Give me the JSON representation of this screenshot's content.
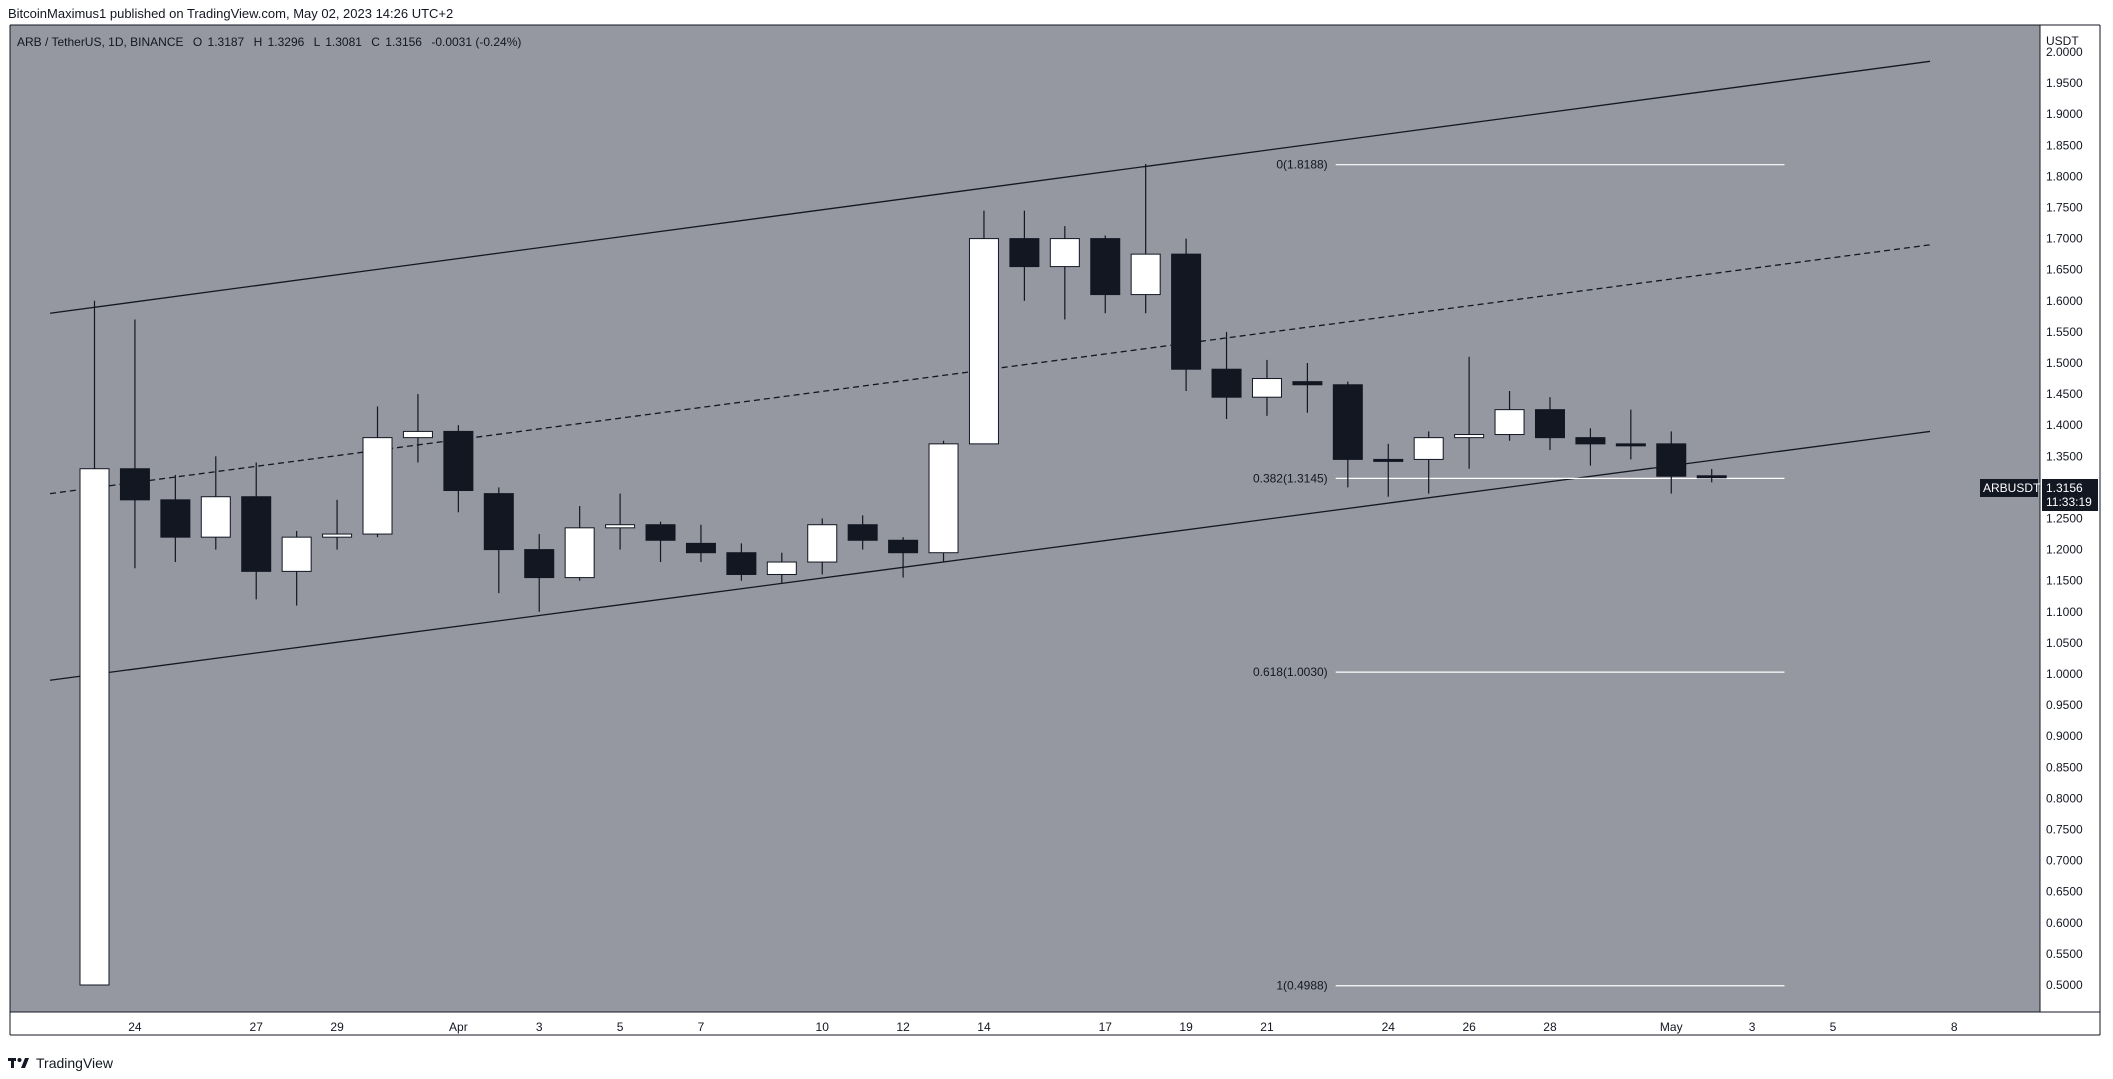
{
  "header": {
    "published_line": "BitcoinMaximus1 published on TradingView.com, May 02, 2023 14:26 UTC+2"
  },
  "legend": {
    "symbol_line": "ARB / TetherUS, 1D, BINANCE",
    "o_label": "O",
    "o_value": "1.3187",
    "h_label": "H",
    "h_value": "1.3296",
    "l_label": "L",
    "l_value": "1.3081",
    "c_label": "C",
    "c_value": "1.3156",
    "change": "-0.0031 (-0.24%)"
  },
  "price_tag": {
    "symbol": "ARBUSDT",
    "price": "1.3156",
    "countdown": "11:33:19"
  },
  "footer": {
    "brand": "TradingView"
  },
  "colors": {
    "plot_bg": "#9598a1",
    "up_candle": "#ffffff",
    "down_candle": "#131722",
    "channel": "#131722",
    "fib": "#ffffff",
    "axis_bg": "#ffffff"
  },
  "chart_data": {
    "type": "candlestick",
    "y_axis": {
      "unit": "USDT",
      "range": [
        0.47,
        2.05
      ],
      "ticks": [
        "2.0000",
        "1.9500",
        "1.9000",
        "1.8500",
        "1.8000",
        "1.7500",
        "1.7000",
        "1.6500",
        "1.6000",
        "1.5500",
        "1.5000",
        "1.4500",
        "1.4000",
        "1.3500",
        "1.3000",
        "1.2500",
        "1.2000",
        "1.1500",
        "1.1000",
        "1.0500",
        "1.0000",
        "0.9500",
        "0.9000",
        "0.8500",
        "0.8000",
        "0.7500",
        "0.7000",
        "0.6500",
        "0.6000",
        "0.5500",
        "0.5000"
      ]
    },
    "x_axis": {
      "ticks": [
        {
          "label": "24",
          "day": 1
        },
        {
          "label": "27",
          "day": 4
        },
        {
          "label": "29",
          "day": 6
        },
        {
          "label": "Apr",
          "day": 9
        },
        {
          "label": "3",
          "day": 11
        },
        {
          "label": "5",
          "day": 13
        },
        {
          "label": "7",
          "day": 15
        },
        {
          "label": "10",
          "day": 18
        },
        {
          "label": "12",
          "day": 20
        },
        {
          "label": "14",
          "day": 22
        },
        {
          "label": "17",
          "day": 25
        },
        {
          "label": "19",
          "day": 27
        },
        {
          "label": "21",
          "day": 29
        },
        {
          "label": "24",
          "day": 32
        },
        {
          "label": "26",
          "day": 34
        },
        {
          "label": "28",
          "day": 36
        },
        {
          "label": "May",
          "day": 39
        },
        {
          "label": "3",
          "day": 41
        },
        {
          "label": "5",
          "day": 43
        },
        {
          "label": "8",
          "day": 46
        }
      ]
    },
    "candles": [
      {
        "date": "2023-03-23",
        "o": 0.5,
        "h": 1.6,
        "l": 0.5,
        "c": 1.33
      },
      {
        "date": "2023-03-24",
        "o": 1.33,
        "h": 1.57,
        "l": 1.17,
        "c": 1.28
      },
      {
        "date": "2023-03-25",
        "o": 1.28,
        "h": 1.32,
        "l": 1.18,
        "c": 1.22
      },
      {
        "date": "2023-03-26",
        "o": 1.22,
        "h": 1.35,
        "l": 1.2,
        "c": 1.285
      },
      {
        "date": "2023-03-27",
        "o": 1.285,
        "h": 1.34,
        "l": 1.12,
        "c": 1.165
      },
      {
        "date": "2023-03-28",
        "o": 1.165,
        "h": 1.23,
        "l": 1.11,
        "c": 1.22
      },
      {
        "date": "2023-03-29",
        "o": 1.22,
        "h": 1.28,
        "l": 1.2,
        "c": 1.225
      },
      {
        "date": "2023-03-30",
        "o": 1.225,
        "h": 1.43,
        "l": 1.22,
        "c": 1.38
      },
      {
        "date": "2023-03-31",
        "o": 1.38,
        "h": 1.45,
        "l": 1.34,
        "c": 1.39
      },
      {
        "date": "2023-04-01",
        "o": 1.39,
        "h": 1.4,
        "l": 1.26,
        "c": 1.295
      },
      {
        "date": "2023-04-02",
        "o": 1.29,
        "h": 1.3,
        "l": 1.13,
        "c": 1.2
      },
      {
        "date": "2023-04-03",
        "o": 1.2,
        "h": 1.225,
        "l": 1.1,
        "c": 1.155
      },
      {
        "date": "2023-04-04",
        "o": 1.155,
        "h": 1.27,
        "l": 1.15,
        "c": 1.235
      },
      {
        "date": "2023-04-05",
        "o": 1.235,
        "h": 1.29,
        "l": 1.2,
        "c": 1.24
      },
      {
        "date": "2023-04-06",
        "o": 1.24,
        "h": 1.245,
        "l": 1.18,
        "c": 1.215
      },
      {
        "date": "2023-04-07",
        "o": 1.21,
        "h": 1.24,
        "l": 1.18,
        "c": 1.195
      },
      {
        "date": "2023-04-08",
        "o": 1.195,
        "h": 1.21,
        "l": 1.15,
        "c": 1.16
      },
      {
        "date": "2023-04-09",
        "o": 1.16,
        "h": 1.195,
        "l": 1.145,
        "c": 1.18
      },
      {
        "date": "2023-04-10",
        "o": 1.18,
        "h": 1.25,
        "l": 1.16,
        "c": 1.24
      },
      {
        "date": "2023-04-11",
        "o": 1.24,
        "h": 1.255,
        "l": 1.2,
        "c": 1.215
      },
      {
        "date": "2023-04-12",
        "o": 1.215,
        "h": 1.22,
        "l": 1.155,
        "c": 1.195
      },
      {
        "date": "2023-04-13",
        "o": 1.195,
        "h": 1.375,
        "l": 1.18,
        "c": 1.37
      },
      {
        "date": "2023-04-14",
        "o": 1.37,
        "h": 1.745,
        "l": 1.37,
        "c": 1.7
      },
      {
        "date": "2023-04-15",
        "o": 1.7,
        "h": 1.745,
        "l": 1.6,
        "c": 1.655
      },
      {
        "date": "2023-04-16",
        "o": 1.655,
        "h": 1.72,
        "l": 1.57,
        "c": 1.7
      },
      {
        "date": "2023-04-17",
        "o": 1.7,
        "h": 1.705,
        "l": 1.58,
        "c": 1.61
      },
      {
        "date": "2023-04-18",
        "o": 1.61,
        "h": 1.82,
        "l": 1.58,
        "c": 1.675
      },
      {
        "date": "2023-04-19",
        "o": 1.675,
        "h": 1.7,
        "l": 1.455,
        "c": 1.49
      },
      {
        "date": "2023-04-20",
        "o": 1.49,
        "h": 1.55,
        "l": 1.41,
        "c": 1.445
      },
      {
        "date": "2023-04-21",
        "o": 1.445,
        "h": 1.505,
        "l": 1.415,
        "c": 1.475
      },
      {
        "date": "2023-04-22",
        "o": 1.47,
        "h": 1.5,
        "l": 1.42,
        "c": 1.465
      },
      {
        "date": "2023-04-23",
        "o": 1.465,
        "h": 1.47,
        "l": 1.3,
        "c": 1.345
      },
      {
        "date": "2023-04-24",
        "o": 1.345,
        "h": 1.37,
        "l": 1.285,
        "c": 1.342
      },
      {
        "date": "2023-04-25",
        "o": 1.345,
        "h": 1.39,
        "l": 1.29,
        "c": 1.38
      },
      {
        "date": "2023-04-26",
        "o": 1.38,
        "h": 1.51,
        "l": 1.33,
        "c": 1.385
      },
      {
        "date": "2023-04-27",
        "o": 1.385,
        "h": 1.455,
        "l": 1.375,
        "c": 1.425
      },
      {
        "date": "2023-04-28",
        "o": 1.425,
        "h": 1.445,
        "l": 1.36,
        "c": 1.38
      },
      {
        "date": "2023-04-29",
        "o": 1.38,
        "h": 1.395,
        "l": 1.335,
        "c": 1.37
      },
      {
        "date": "2023-04-30",
        "o": 1.37,
        "h": 1.425,
        "l": 1.345,
        "c": 1.368
      },
      {
        "date": "2023-05-01",
        "o": 1.37,
        "h": 1.39,
        "l": 1.29,
        "c": 1.318
      },
      {
        "date": "2023-05-02",
        "o": 1.3187,
        "h": 1.3296,
        "l": 1.3081,
        "c": 1.3156
      }
    ],
    "channel": {
      "upper": [
        {
          "day": -1.1,
          "y": 1.58
        },
        {
          "day": 45.4,
          "y": 1.985
        }
      ],
      "middle": [
        {
          "day": -1.1,
          "y": 1.29
        },
        {
          "day": 45.4,
          "y": 1.69
        }
      ],
      "lower": [
        {
          "day": -1.1,
          "y": 0.99
        },
        {
          "day": 45.4,
          "y": 1.39
        }
      ]
    },
    "fib_levels": [
      {
        "label": "0(1.8188)",
        "value": 1.8188
      },
      {
        "label": "0.382(1.3145)",
        "value": 1.3145
      },
      {
        "label": "0.618(1.0030)",
        "value": 1.003
      },
      {
        "label": "1(0.4988)",
        "value": 0.4988
      }
    ],
    "fib_range_days": [
      30.7,
      41.8
    ]
  }
}
